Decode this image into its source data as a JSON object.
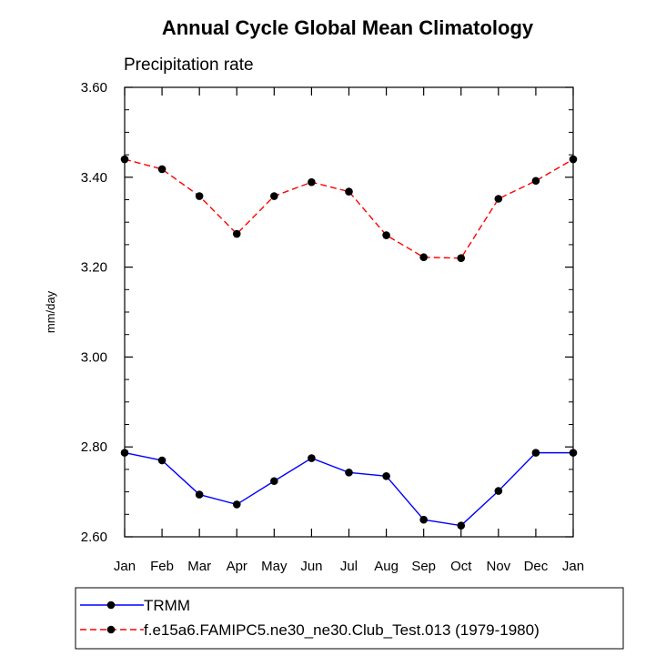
{
  "chart_data": {
    "type": "line",
    "title": "Annual Cycle Global Mean Climatology",
    "subtitle": "Precipitation rate",
    "xlabel": "",
    "ylabel": "mm/day",
    "categories": [
      "Jan",
      "Feb",
      "Mar",
      "Apr",
      "May",
      "Jun",
      "Jul",
      "Aug",
      "Sep",
      "Oct",
      "Nov",
      "Dec",
      "Jan"
    ],
    "ylim": [
      2.6,
      3.6
    ],
    "yticks": [
      "2.60",
      "2.80",
      "3.00",
      "3.20",
      "3.40",
      "3.60"
    ],
    "ytick_values": [
      2.6,
      2.8,
      3.0,
      3.2,
      3.4,
      3.6
    ],
    "series": [
      {
        "name": "TRMM",
        "color": "#0000ff",
        "dash": "solid",
        "values": [
          2.787,
          2.77,
          2.694,
          2.672,
          2.724,
          2.775,
          2.743,
          2.735,
          2.638,
          2.625,
          2.702,
          2.787,
          2.787
        ]
      },
      {
        "name": "f.e15a6.FAMIPC5.ne30_ne30.Club_Test.013 (1979-1980)",
        "color": "#ff0000",
        "dash": "dashed",
        "values": [
          3.44,
          3.418,
          3.358,
          3.274,
          3.358,
          3.389,
          3.368,
          3.271,
          3.222,
          3.22,
          3.352,
          3.392,
          3.44
        ]
      }
    ],
    "legend_position": "bottom"
  }
}
